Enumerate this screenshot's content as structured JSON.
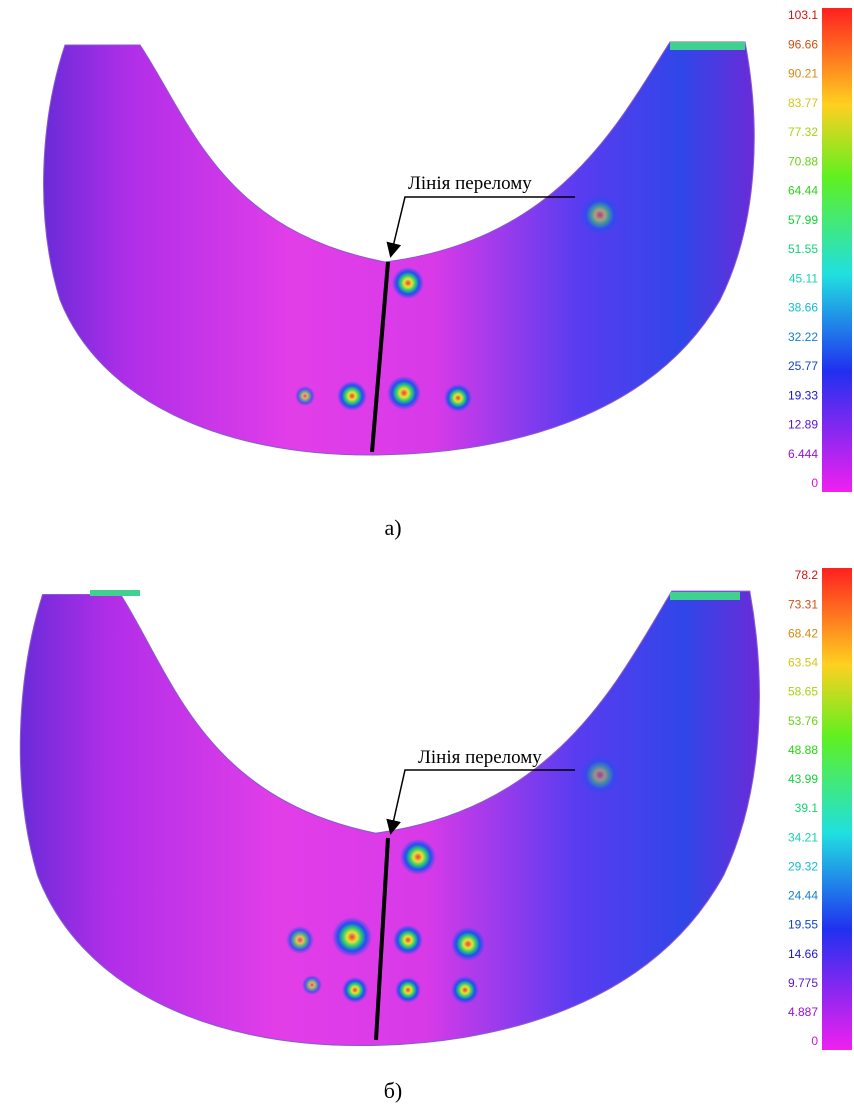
{
  "panels": [
    {
      "caption": "а)",
      "annotation": "Лінія перелому",
      "scale": [
        "103.1",
        "96.66",
        "90.21",
        "83.77",
        "77.32",
        "70.88",
        "64.44",
        "57.99",
        "51.55",
        "45.11",
        "38.66",
        "32.22",
        "25.77",
        "19.33",
        "12.89",
        "6.444",
        "0"
      ]
    },
    {
      "caption": "б)",
      "annotation": "Лінія перелому",
      "scale": [
        "78.2",
        "73.31",
        "68.42",
        "63.54",
        "58.65",
        "53.76",
        "48.88",
        "43.99",
        "39.1",
        "34.21",
        "29.32",
        "24.44",
        "19.55",
        "14.66",
        "9.775",
        "4.887",
        "0"
      ]
    }
  ]
}
